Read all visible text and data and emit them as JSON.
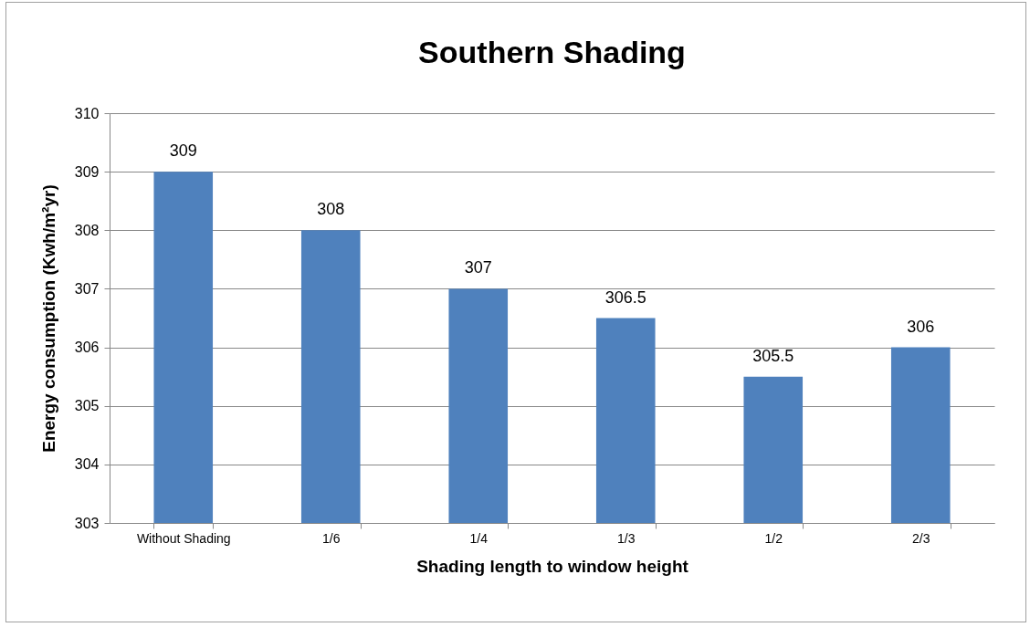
{
  "chart_data": {
    "type": "bar",
    "title": "Southern Shading",
    "xlabel": "Shading length to window height",
    "ylabel": "Energy consumption  (Kwh/m²yr)",
    "categories": [
      "Without Shading",
      "1/6",
      "1/4",
      "1/3",
      "1/2",
      "2/3"
    ],
    "values": [
      309,
      308,
      307,
      306.5,
      305.5,
      306
    ],
    "color": "#4f81bd",
    "ylim": [
      303,
      310
    ],
    "yticks": [
      303,
      304,
      305,
      306,
      307,
      308,
      309,
      310
    ],
    "grid": "y",
    "data_labels": true
  }
}
